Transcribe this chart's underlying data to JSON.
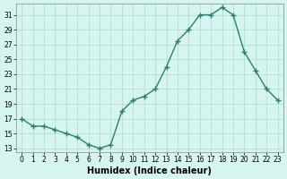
{
  "x": [
    0,
    1,
    2,
    3,
    4,
    5,
    6,
    7,
    8,
    9,
    10,
    11,
    12,
    13,
    14,
    15,
    16,
    17,
    18,
    19,
    20,
    21,
    22,
    23
  ],
  "y": [
    17,
    16,
    16,
    15.5,
    15,
    14.5,
    13.5,
    13,
    13.5,
    18,
    19.5,
    20,
    21,
    24,
    27.5,
    29,
    31,
    31,
    32,
    31,
    26,
    23.5,
    21,
    19.5
  ],
  "line_color": "#2e7d6e",
  "marker": "+",
  "marker_size": 4,
  "background_color": "#d6f5f0",
  "grid_color": "#aaddcc",
  "xlabel": "Humidex (Indice chaleur)",
  "yticks": [
    13,
    15,
    17,
    19,
    21,
    23,
    25,
    27,
    29,
    31
  ],
  "ylim": [
    12.5,
    32.5
  ],
  "xlim": [
    -0.5,
    23.5
  ],
  "xticks": [
    0,
    1,
    2,
    3,
    4,
    5,
    6,
    7,
    8,
    9,
    10,
    11,
    12,
    13,
    14,
    15,
    16,
    17,
    18,
    19,
    20,
    21,
    22,
    23
  ]
}
